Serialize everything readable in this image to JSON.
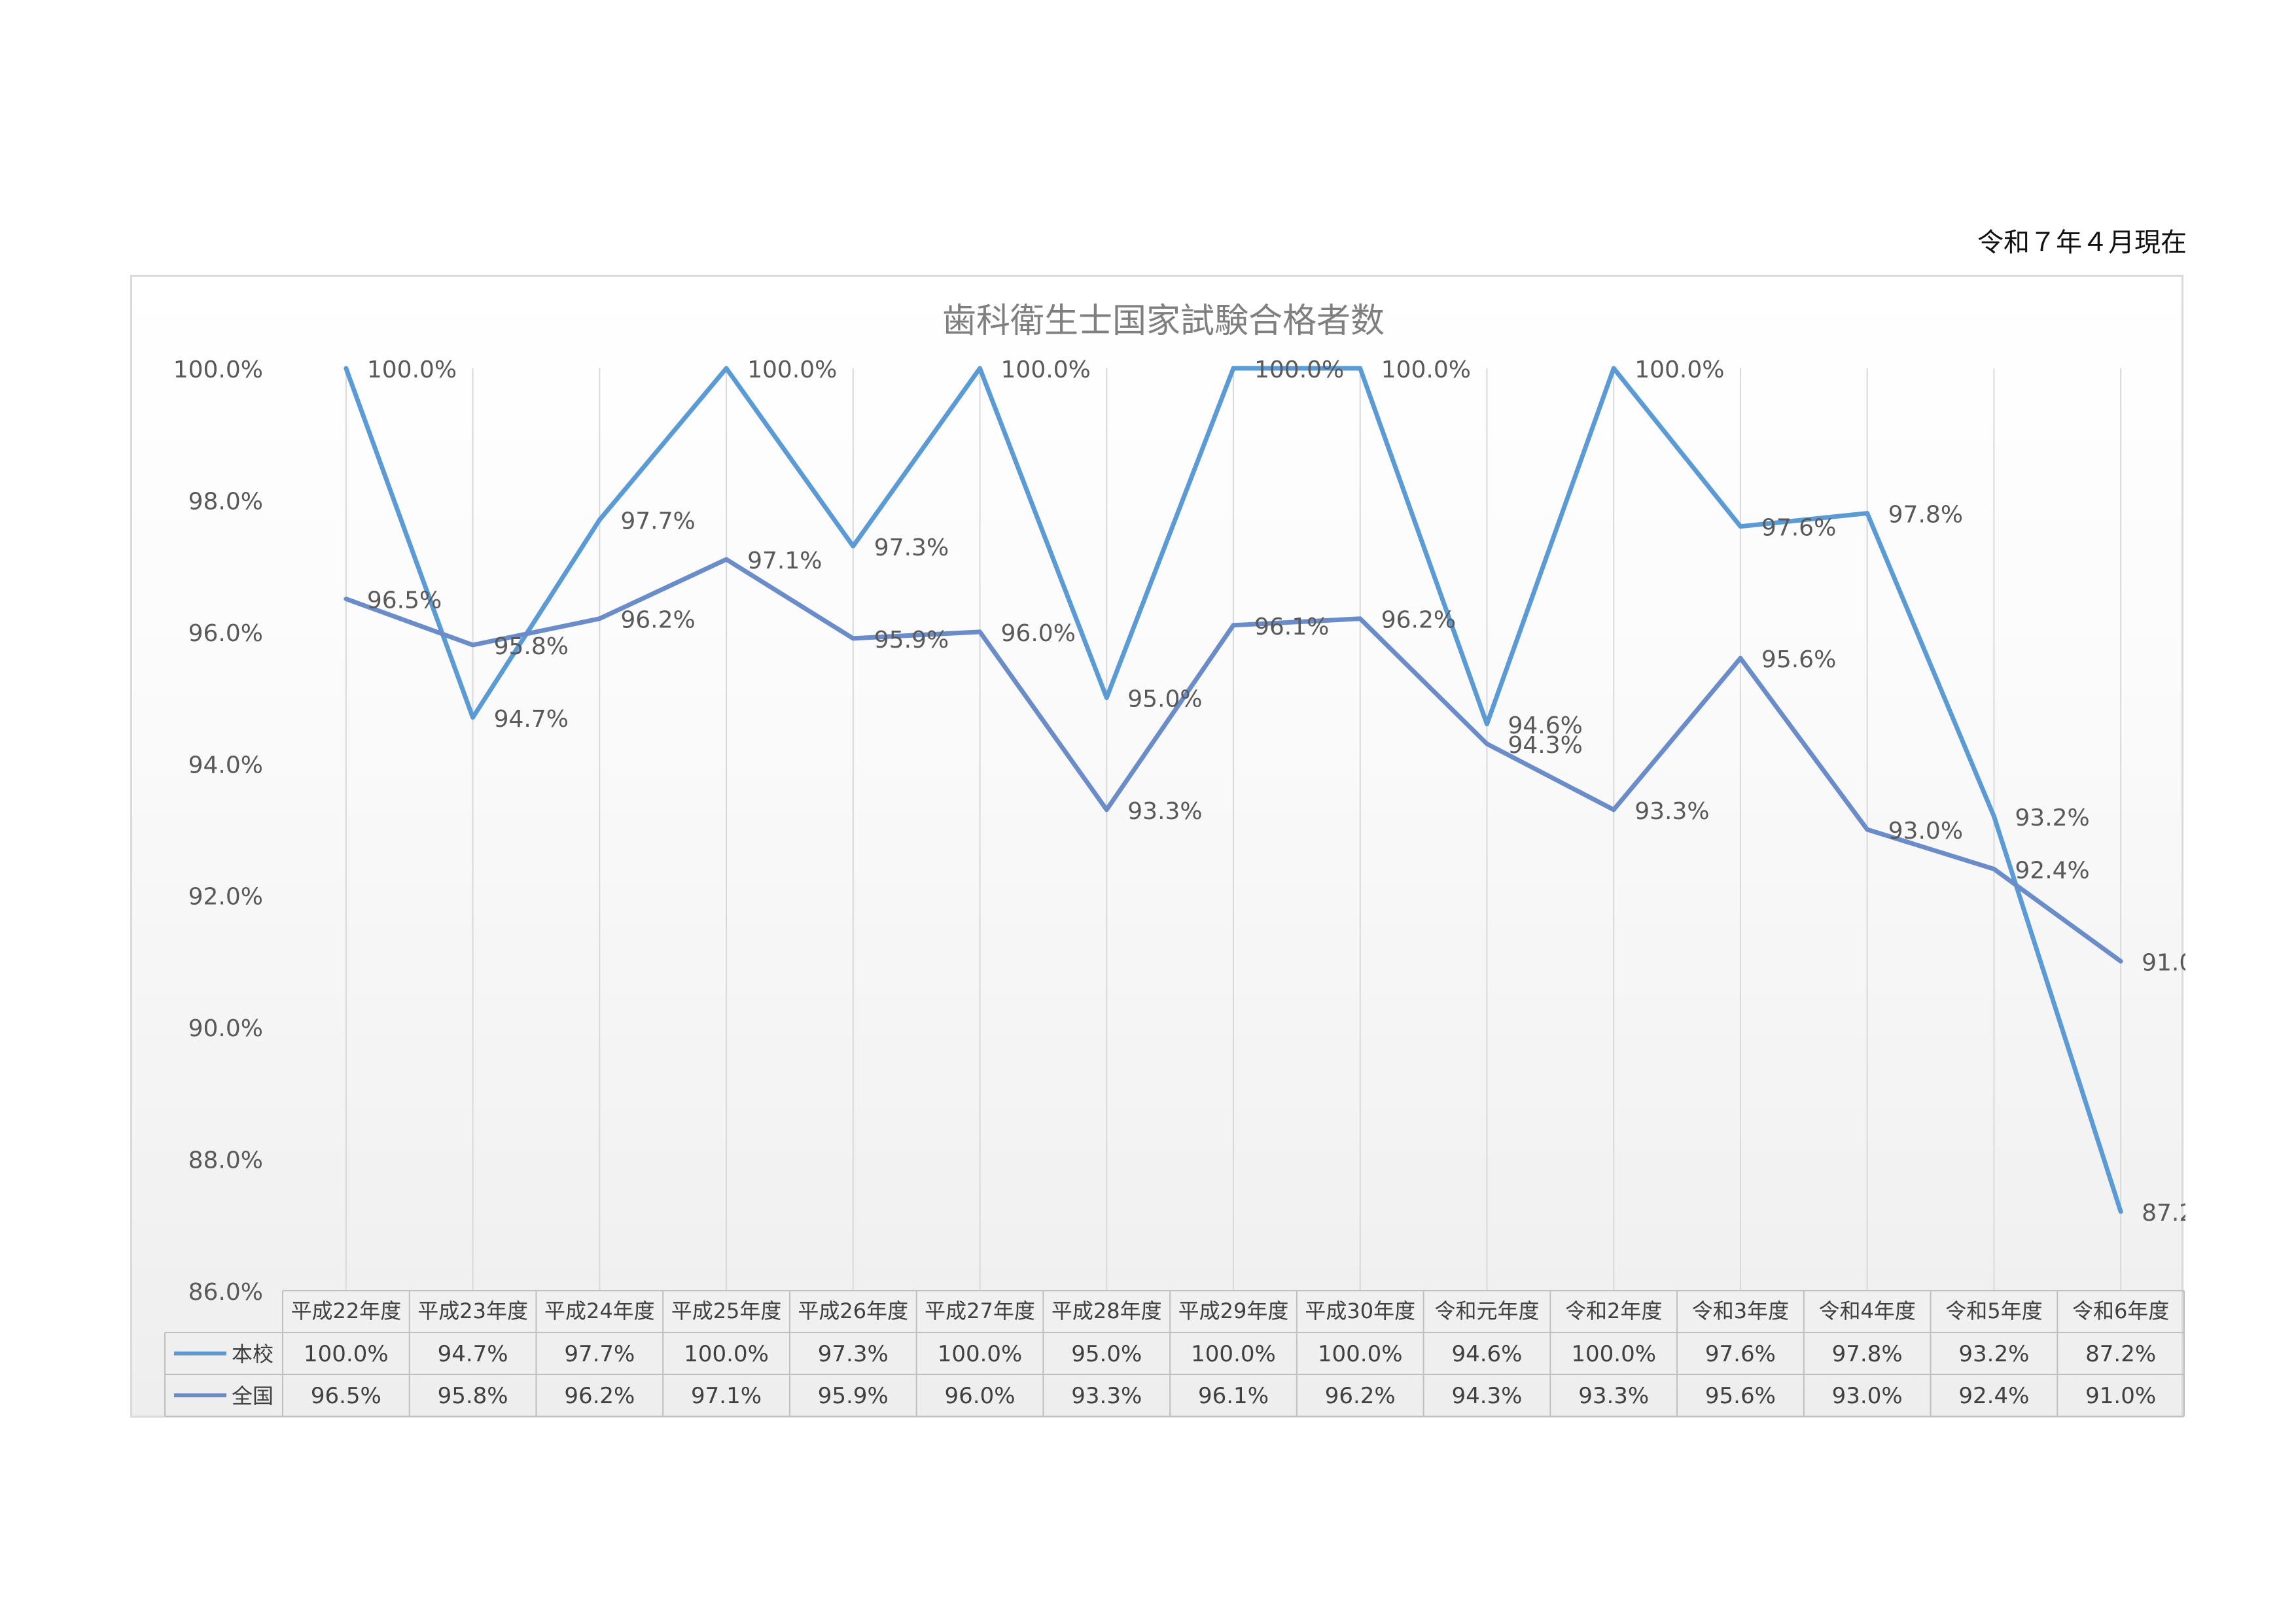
{
  "page": {
    "date_note": "令和７年４月現在"
  },
  "chart_data": {
    "type": "line",
    "title": "歯科衛生士国家試験合格者数",
    "categories": [
      "平成22年度",
      "平成23年度",
      "平成24年度",
      "平成25年度",
      "平成26年度",
      "平成27年度",
      "平成28年度",
      "平成29年度",
      "平成30年度",
      "令和元年度",
      "令和2年度",
      "令和3年度",
      "令和4年度",
      "令和5年度",
      "令和6年度"
    ],
    "series": [
      {
        "name": "本校",
        "color": "#5b9bd5",
        "values": [
          100.0,
          94.7,
          97.7,
          100.0,
          97.3,
          100.0,
          95.0,
          100.0,
          100.0,
          94.6,
          100.0,
          97.6,
          97.8,
          93.2,
          87.2
        ],
        "labels": [
          "100.0%",
          "94.7%",
          "97.7%",
          "100.0%",
          "97.3%",
          "100.0%",
          "95.0%",
          "100.0%",
          "100.0%",
          "94.6%",
          "100.0%",
          "97.6%",
          "97.8%",
          "93.2%",
          "87.2%"
        ]
      },
      {
        "name": "全国",
        "color": "#6a8cc8",
        "values": [
          96.5,
          95.8,
          96.2,
          97.1,
          95.9,
          96.0,
          93.3,
          96.1,
          96.2,
          94.3,
          93.3,
          95.6,
          93.0,
          92.4,
          91.0
        ],
        "labels": [
          "96.5%",
          "95.8%",
          "96.2%",
          "97.1%",
          "95.9%",
          "96.0%",
          "93.3%",
          "96.1%",
          "96.2%",
          "94.3%",
          "93.3%",
          "95.6%",
          "93.0%",
          "92.4%",
          "91.0%"
        ]
      }
    ],
    "ylim": [
      86.0,
      100.0
    ],
    "yticks": [
      100.0,
      98.0,
      96.0,
      94.0,
      92.0,
      90.0,
      88.0,
      86.0
    ],
    "ytick_labels": [
      "100.0%",
      "98.0%",
      "96.0%",
      "94.0%",
      "92.0%",
      "90.0%",
      "88.0%",
      "86.0%"
    ],
    "grid": "vertical",
    "legend": "data-table"
  }
}
